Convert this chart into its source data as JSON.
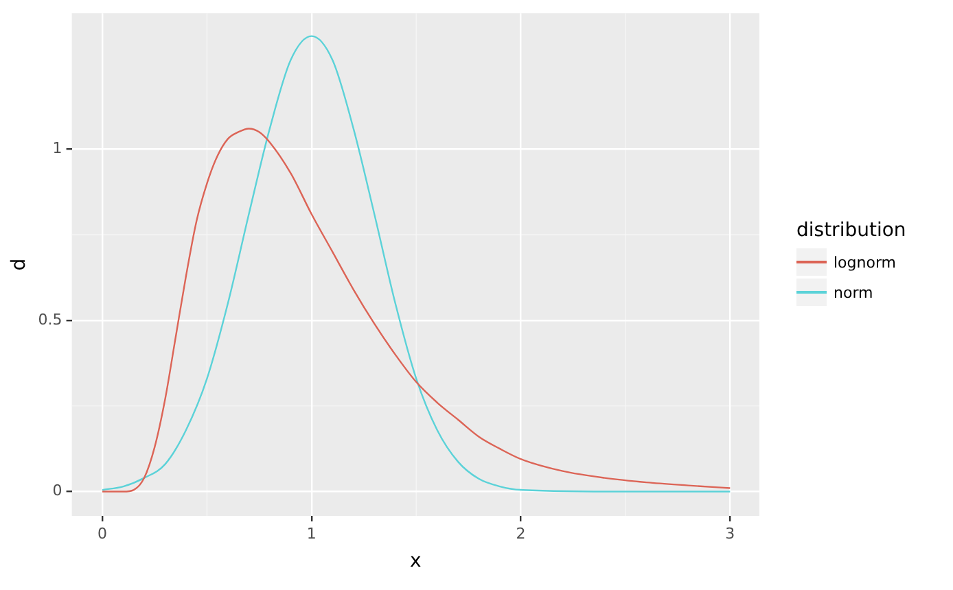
{
  "chart_data": {
    "type": "line",
    "xlabel": "x",
    "ylabel": "d",
    "legend_title": "distribution",
    "legend": "right",
    "grid": true,
    "marker": "none",
    "line_style": "solid",
    "xlim": [
      -0.146,
      3.14
    ],
    "xticks": [
      0,
      1,
      2,
      3
    ],
    "ylim": [
      -0.071,
      1.397
    ],
    "yticks": [
      0,
      0.5,
      1
    ],
    "series": [
      {
        "name": "lognorm",
        "color": "#dc6456",
        "x": [
          0,
          0.1,
          0.15,
          0.2,
          0.25,
          0.3,
          0.35,
          0.4,
          0.45,
          0.5,
          0.55,
          0.6,
          0.65,
          0.7,
          0.75,
          0.8,
          0.9,
          1.0,
          1.1,
          1.2,
          1.3,
          1.4,
          1.5,
          1.6,
          1.7,
          1.8,
          1.9,
          2.0,
          2.2,
          2.4,
          2.6,
          2.8,
          3.0
        ],
        "values": [
          0,
          0,
          0.005,
          0.04,
          0.13,
          0.27,
          0.45,
          0.63,
          0.79,
          0.9,
          0.98,
          1.03,
          1.05,
          1.06,
          1.05,
          1.02,
          0.93,
          0.81,
          0.7,
          0.59,
          0.49,
          0.4,
          0.32,
          0.26,
          0.21,
          0.16,
          0.125,
          0.095,
          0.06,
          0.04,
          0.027,
          0.018,
          0.01
        ]
      },
      {
        "name": "norm",
        "color": "#5bd2d8",
        "x": [
          0,
          0.1,
          0.2,
          0.3,
          0.4,
          0.5,
          0.6,
          0.7,
          0.8,
          0.9,
          1.0,
          1.1,
          1.2,
          1.3,
          1.4,
          1.5,
          1.6,
          1.7,
          1.8,
          1.9,
          2.0,
          2.5,
          3.0
        ],
        "values": [
          0.005,
          0.015,
          0.04,
          0.08,
          0.18,
          0.33,
          0.55,
          0.81,
          1.06,
          1.26,
          1.33,
          1.26,
          1.06,
          0.81,
          0.55,
          0.33,
          0.18,
          0.087,
          0.037,
          0.015,
          0.005,
          0,
          0
        ]
      }
    ]
  }
}
